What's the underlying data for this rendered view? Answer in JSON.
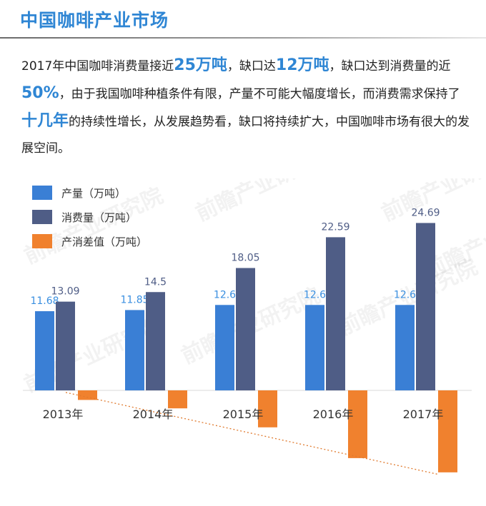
{
  "title": "中国咖啡产业市场",
  "paragraph": {
    "p1": "2017年中国咖啡消费量接近",
    "h1": "25万吨",
    "p2": "，缺口达",
    "h2": "12万吨",
    "p3": "，缺口达到消费量的近",
    "h3": "50%",
    "p4": "，由于我国咖啡种植条件有限，产量不可能大幅度增长，而消费需求保持了",
    "h4": "十几年",
    "p5": "的持续性增长，从发展趋势看，缺口将持续扩大，中国咖啡市场有很大的发展空间。"
  },
  "watermark": "前瞻产业研究院",
  "colors": {
    "production": "#3a7fd5",
    "consumption": "#4f5d86",
    "gap": "#f0812e",
    "highlight": "#2f86d4",
    "trend": "#e07a2e"
  },
  "chart_data": {
    "type": "bar",
    "categories": [
      "2013年",
      "2014年",
      "2015年",
      "2016年",
      "2017年"
    ],
    "series": [
      {
        "name": "产量（万吨）",
        "values": [
          11.68,
          11.85,
          12.6,
          12.6,
          12.6
        ],
        "labels": [
          "11.68",
          "11.85",
          "12.6",
          "12.6",
          "12.6"
        ]
      },
      {
        "name": "消费量（万吨）",
        "values": [
          13.09,
          14.5,
          18.05,
          22.59,
          24.69
        ],
        "labels": [
          "13.09",
          "14.5",
          "18.05",
          "22.59",
          "24.69"
        ]
      },
      {
        "name": "产消差值（万吨）",
        "values": [
          -1.41,
          -2.65,
          -5.45,
          -9.99,
          -12.09
        ],
        "labels": []
      }
    ],
    "legend_position": "top-left",
    "trendline": "dotted linear trend on 产消差值",
    "grid": false
  }
}
